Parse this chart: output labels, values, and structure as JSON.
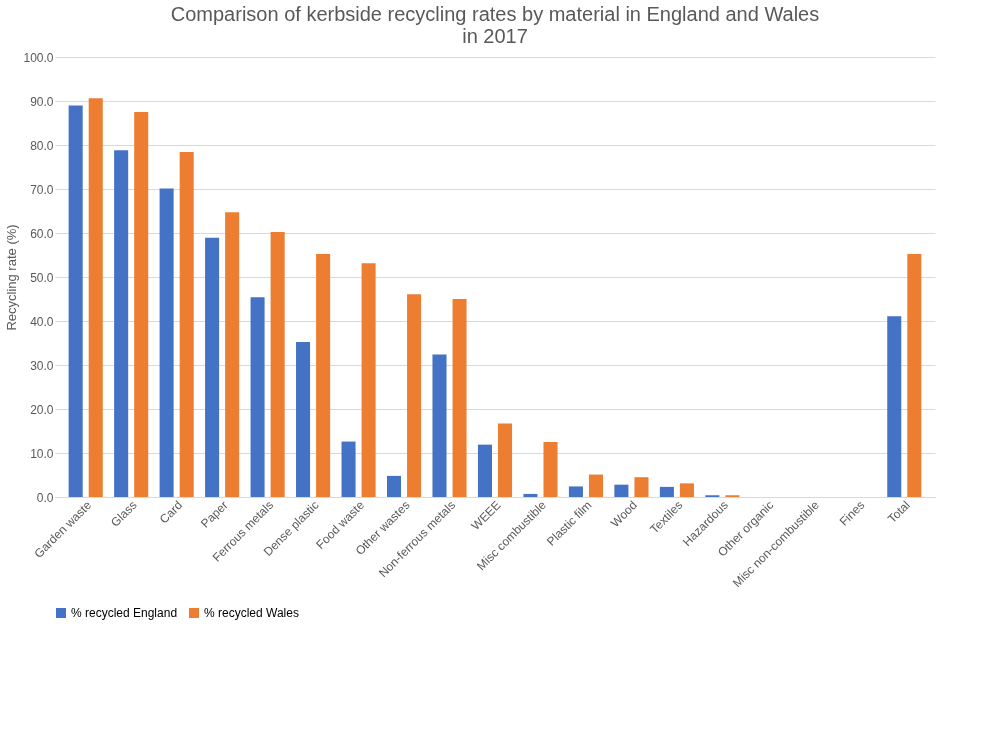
{
  "chart_data": {
    "type": "bar",
    "title": "Comparison of kerbside recycling rates by material in England and Wales\nin 2017",
    "ylabel": "Recycling rate (%)",
    "categories": [
      "Garden waste",
      "Glass",
      "Card",
      "Paper",
      "Ferrous metals",
      "Dense plastic",
      "Food waste",
      "Other wastes",
      "Non-ferrous metals",
      "WEEE",
      "Misc combustible",
      "Plastic film",
      "Wood",
      "Textiles",
      "Hazardous",
      "Other organic",
      "Misc non-combustible",
      "Fines",
      "Total"
    ],
    "series": [
      {
        "name": "% recycled England",
        "color": "#4472c4",
        "values": [
          89.0,
          78.8,
          70.1,
          58.9,
          45.4,
          35.2,
          12.6,
          4.8,
          32.4,
          11.9,
          0.7,
          2.4,
          2.8,
          2.3,
          0.4,
          0,
          0,
          0,
          41.1
        ]
      },
      {
        "name": "% recycled Wales",
        "color": "#ed7d31",
        "values": [
          90.6,
          87.5,
          78.4,
          64.7,
          60.2,
          55.2,
          53.1,
          46.1,
          45.0,
          16.7,
          12.5,
          5.1,
          4.5,
          3.1,
          0.4,
          0,
          0,
          0,
          55.2
        ]
      }
    ],
    "ylim": [
      0,
      100
    ],
    "yticks": [
      {
        "value": 0,
        "label": "0.0"
      },
      {
        "value": 10,
        "label": "10.0"
      },
      {
        "value": 20,
        "label": "20.0"
      },
      {
        "value": 30,
        "label": "30.0"
      },
      {
        "value": 40,
        "label": "40.0"
      },
      {
        "value": 50,
        "label": "50.0"
      },
      {
        "value": 60,
        "label": "60.0"
      },
      {
        "value": 70,
        "label": "70.0"
      },
      {
        "value": 80,
        "label": "80.0"
      },
      {
        "value": 90,
        "label": "90.0"
      },
      {
        "value": 100,
        "label": "100.0"
      }
    ],
    "grid": "y",
    "legend": "bottom"
  }
}
